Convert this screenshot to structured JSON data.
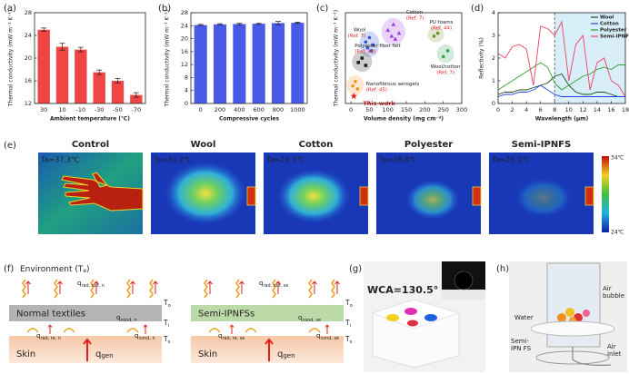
{
  "chart_data": [
    {
      "type": "bar",
      "label": "(a)",
      "ylabel": "Thermal conductivity (mW m⁻¹ K⁻¹)",
      "xlabel": "Ambient temperature (℃)",
      "categories": [
        "30",
        "10",
        "-10",
        "-30",
        "-50",
        "-70"
      ],
      "values": [
        25,
        22,
        21.5,
        17.5,
        16,
        13.5
      ],
      "errors": [
        0.3,
        0.6,
        0.4,
        0.4,
        0.4,
        0.4
      ],
      "color": "#f04545",
      "ylim": [
        12,
        28
      ],
      "yticks": [
        12,
        16,
        20,
        24,
        28
      ]
    },
    {
      "type": "bar",
      "label": "(b)",
      "ylabel": "Thermal conductivity (mW m⁻¹ K⁻¹)",
      "xlabel": "Compressive cycles",
      "categories": [
        "0",
        "200",
        "400",
        "600",
        "800",
        "1000"
      ],
      "values": [
        24.2,
        24.4,
        24.5,
        24.6,
        24.8,
        24.9
      ],
      "errors": [
        0.2,
        0.2,
        0.2,
        0.2,
        0.5,
        0.2
      ],
      "color": "#4a5ae8",
      "ylim": [
        0,
        28
      ],
      "yticks": [
        0,
        4,
        8,
        12,
        16,
        20,
        24,
        28
      ]
    },
    {
      "type": "scatter",
      "label": "(c)",
      "ylabel": "Thermal conductivity (mW m⁻¹ K⁻¹)",
      "xlabel": "Volume density (mg cm⁻³)",
      "xlim": [
        -15,
        300
      ],
      "xticks": [
        0,
        50,
        100,
        150,
        200,
        250,
        300
      ],
      "ylim": [
        0,
        62
      ],
      "series": [
        {
          "name": "Wool",
          "ref": "(Ref. 7)",
          "color": "#3050d0",
          "marker": "circle",
          "x": [
            40,
            50,
            60,
            55,
            45
          ],
          "y": [
            42,
            45,
            40,
            36,
            38
          ]
        },
        {
          "name": "Cotton",
          "ref": "(Ref. 7)",
          "color": "#a040e0",
          "marker": "triangle",
          "x": [
            100,
            115,
            130,
            120,
            110
          ],
          "y": [
            50,
            54,
            48,
            44,
            46
          ]
        },
        {
          "name": "Polyester fiber felt",
          "ref": "(Ref. 43)",
          "color": "#222222",
          "marker": "square",
          "x": [
            20,
            30,
            40
          ],
          "y": [
            28,
            31,
            26
          ]
        },
        {
          "name": "PU foams",
          "ref": "(Ref. 44)",
          "color": "#709030",
          "marker": "circle",
          "x": [
            225,
            235
          ],
          "y": [
            46,
            48
          ]
        },
        {
          "name": "Wool/cotton",
          "ref": "(Ref. 7)",
          "color": "#30a050",
          "marker": "circle",
          "x": [
            250,
            262
          ],
          "y": [
            32,
            36
          ]
        },
        {
          "name": "Nanofibrous aerogels",
          "ref": "(Ref. 45)",
          "color": "#f09020",
          "marker": "circle",
          "x": [
            5,
            12,
            18
          ],
          "y": [
            12,
            15,
            10
          ]
        },
        {
          "name": "This work",
          "color": "#e02020",
          "marker": "star",
          "x": [
            8
          ],
          "y": [
            5
          ]
        }
      ]
    },
    {
      "type": "line",
      "label": "(d)",
      "ylabel": "Reflectivity (%)",
      "xlabel": "Wavelength (μm)",
      "x": [
        0,
        1,
        2,
        3,
        4,
        5,
        6,
        7,
        8,
        9,
        10,
        11,
        12,
        13,
        14,
        15,
        16,
        17,
        18
      ],
      "xlim": [
        0,
        18
      ],
      "xticks": [
        0,
        2,
        4,
        6,
        8,
        10,
        12,
        14,
        16,
        18
      ],
      "ylim": [
        0,
        4
      ],
      "yticks": [
        0,
        1,
        2,
        3,
        4
      ],
      "highlight": [
        8,
        18
      ],
      "legend": "top-right",
      "series": [
        {
          "name": "Wool",
          "color": "#1a4a1a",
          "values": [
            0.4,
            0.5,
            0.5,
            0.6,
            0.6,
            0.7,
            0.8,
            0.9,
            1.2,
            1.3,
            0.8,
            0.5,
            0.4,
            0.4,
            0.5,
            0.5,
            0.4,
            0.3,
            0.3
          ]
        },
        {
          "name": "Cotton",
          "color": "#2040e0",
          "values": [
            0.3,
            0.4,
            0.4,
            0.5,
            0.5,
            0.6,
            0.8,
            0.6,
            0.4,
            0.3,
            0.3,
            0.3,
            0.3,
            0.3,
            0.3,
            0.3,
            0.3,
            0.3,
            0.3
          ]
        },
        {
          "name": "Polyester",
          "color": "#30a030",
          "values": [
            0.6,
            0.8,
            1.0,
            1.2,
            1.4,
            1.6,
            1.8,
            1.6,
            0.9,
            0.6,
            0.8,
            1.0,
            1.2,
            1.3,
            1.5,
            1.6,
            1.5,
            1.7,
            1.7
          ]
        },
        {
          "name": "Semi-IPNFS",
          "color": "#f04060",
          "values": [
            2.2,
            2.0,
            2.5,
            2.6,
            2.4,
            0.8,
            3.4,
            3.3,
            3.0,
            3.6,
            1.0,
            2.6,
            3.0,
            0.6,
            1.8,
            2.0,
            1.0,
            0.8,
            0.3
          ]
        }
      ]
    }
  ],
  "panels": {
    "e": {
      "label": "(e)",
      "scale_max": "34℃",
      "scale_min": "24℃",
      "images": [
        {
          "title": "Control",
          "ta": "Ta=37.3℃"
        },
        {
          "title": "Wool",
          "ta": "Ta=30.2℃"
        },
        {
          "title": "Cotton",
          "ta": "Ta=29.3℃"
        },
        {
          "title": "Polyester",
          "ta": "Ta=28.8℃"
        },
        {
          "title": "Semi-IPNFS",
          "ta": "Ta=26.2℃"
        }
      ]
    },
    "f": {
      "label": "(f)",
      "environment": {
        "main": "Environment (T",
        "sub": "e",
        "end": ")"
      },
      "diagrams": [
        {
          "layer": "Normal textiles",
          "skin": "Skin",
          "labels": [
            {
              "q": "q",
              "sub": "rad, out, n"
            },
            {
              "q": "q",
              "sub": "cond, n"
            },
            {
              "q": "q",
              "sub": "rad, re, n"
            },
            {
              "q": "q",
              "sub": "cond, n"
            },
            {
              "q": "q",
              "sub": "gen"
            },
            {
              "q": "T",
              "sub": "o"
            },
            {
              "q": "T",
              "sub": "i"
            },
            {
              "q": "T",
              "sub": "s"
            }
          ]
        },
        {
          "layer": "Semi-IPNFSs",
          "skin": "Skin",
          "labels": [
            {
              "q": "q",
              "sub": "rad, out, se"
            },
            {
              "q": "q",
              "sub": "cond, se"
            },
            {
              "q": "q",
              "sub": "rad, re, se"
            },
            {
              "q": "q",
              "sub": "cond, se"
            },
            {
              "q": "q",
              "sub": "gen"
            },
            {
              "q": "T",
              "sub": "o"
            },
            {
              "q": "T",
              "sub": "i"
            },
            {
              "q": "T",
              "sub": "s"
            }
          ]
        }
      ]
    },
    "g": {
      "label": "(g)",
      "wca": "WCA=130.5°"
    },
    "h": {
      "label": "(h)",
      "water": [
        "Water"
      ],
      "air_bubble": [
        "Air",
        "bubble"
      ],
      "membrane": [
        "Semi-",
        "IPN FS"
      ],
      "air_inlet": [
        "Air",
        "inlet"
      ]
    }
  }
}
